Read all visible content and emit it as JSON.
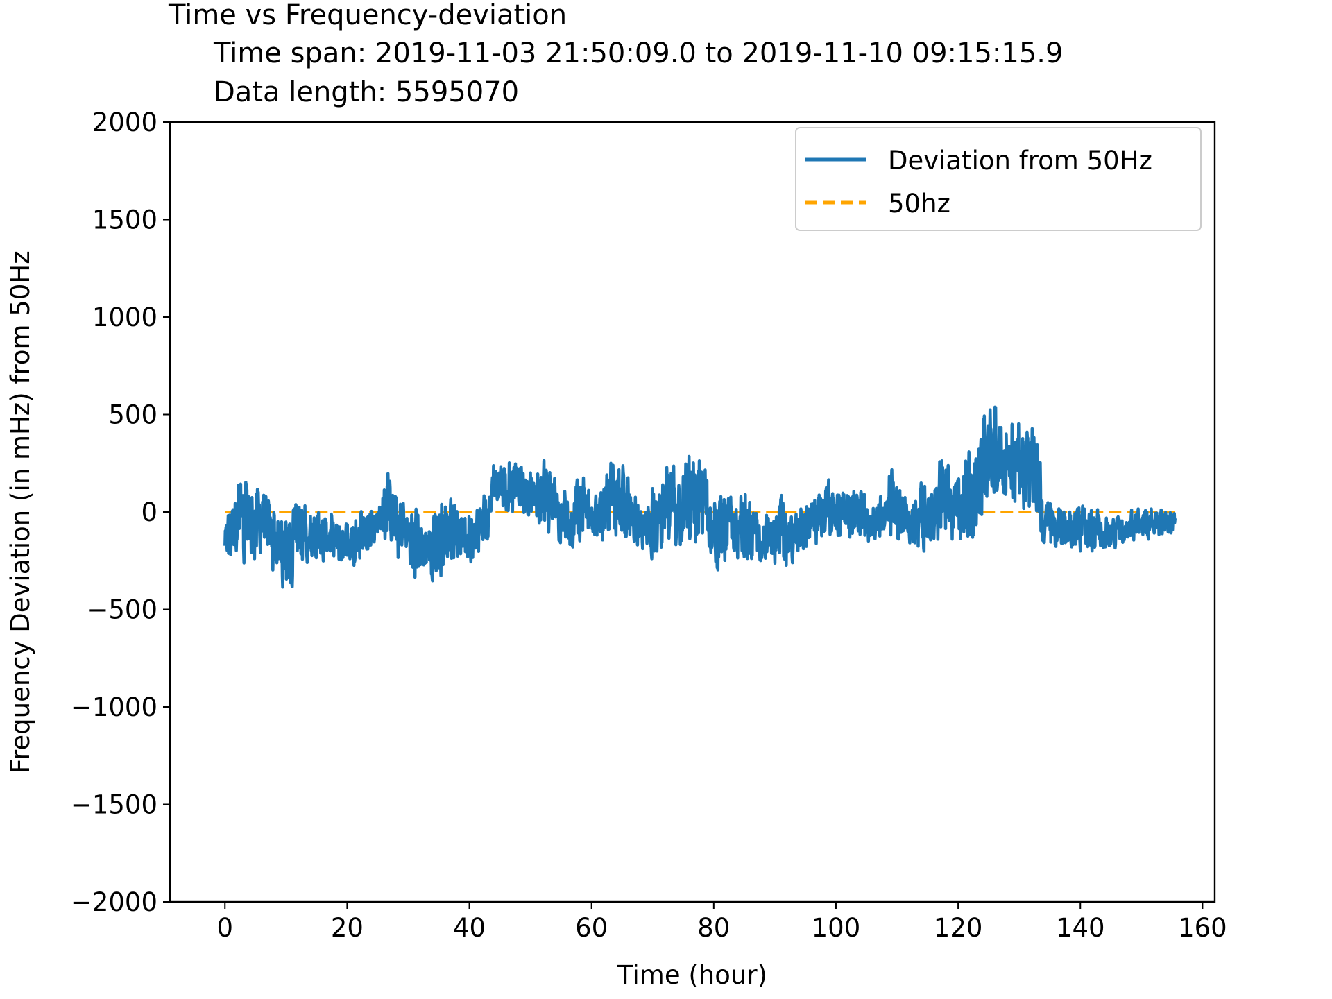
{
  "chart_data": {
    "type": "line",
    "title": "Time vs Frequency-deviation",
    "subtitle_lines": [
      "Time span: 2019-11-03 21:50:09.0 to 2019-11-10 09:15:15.9",
      "Data length: 5595070"
    ],
    "xlabel": "Time (hour)",
    "ylabel": "Frequency Deviation (in mHz) from 50Hz",
    "xlim": [
      -9,
      162
    ],
    "ylim": [
      -2000,
      2000
    ],
    "xticks": [
      0,
      20,
      40,
      60,
      80,
      100,
      120,
      140,
      160
    ],
    "yticks": [
      -2000,
      -1500,
      -1000,
      -500,
      0,
      500,
      1000,
      1500,
      2000
    ],
    "xtick_labels": [
      "0",
      "20",
      "40",
      "60",
      "80",
      "100",
      "120",
      "140",
      "160"
    ],
    "ytick_labels": [
      "−2000",
      "−1500",
      "−1000",
      "−500",
      "0",
      "500",
      "1000",
      "1500",
      "2000"
    ],
    "grid": false,
    "legend_position": "top-right",
    "series": [
      {
        "name": "Deviation from 50Hz",
        "color": "#1f77b4",
        "style": "solid",
        "envelope_x": [
          0,
          0.5,
          1,
          2,
          3,
          4,
          5,
          6,
          7,
          8,
          9,
          10,
          11,
          12,
          13,
          14,
          15,
          16,
          17,
          18,
          19,
          20,
          21,
          22,
          23,
          24,
          25,
          26,
          27,
          28,
          29,
          30,
          31,
          32,
          33,
          34,
          35,
          36,
          37,
          38,
          39,
          40,
          41,
          42,
          43,
          44,
          45,
          46,
          47,
          48,
          49,
          50,
          51,
          52,
          53,
          54,
          55,
          56,
          57,
          58,
          59,
          60,
          61,
          62,
          63,
          64,
          65,
          66,
          67,
          68,
          69,
          70,
          71,
          72,
          73,
          74,
          75,
          76,
          77,
          78,
          79,
          80,
          81,
          82,
          83,
          84,
          85,
          86,
          87,
          88,
          89,
          90,
          91,
          92,
          93,
          94,
          95,
          96,
          97,
          98,
          99,
          100,
          101,
          102,
          103,
          104,
          105,
          106,
          107,
          108,
          109,
          110,
          111,
          112,
          113,
          114,
          115,
          116,
          117,
          118,
          119,
          120,
          121,
          122,
          123,
          124,
          125,
          126,
          127,
          128,
          129,
          130,
          131,
          132,
          133,
          134,
          135,
          136,
          137,
          138,
          139,
          140,
          141,
          142,
          143,
          144,
          145,
          146,
          147,
          148,
          149,
          150,
          151,
          152,
          153,
          154,
          155,
          155.5
        ],
        "envelope_high": [
          -50,
          90,
          120,
          180,
          240,
          200,
          270,
          180,
          120,
          60,
          20,
          30,
          60,
          100,
          140,
          60,
          20,
          40,
          30,
          10,
          20,
          -10,
          -20,
          10,
          20,
          50,
          80,
          150,
          260,
          130,
          70,
          60,
          80,
          40,
          0,
          30,
          120,
          140,
          100,
          40,
          40,
          80,
          100,
          110,
          110,
          290,
          330,
          310,
          330,
          300,
          250,
          220,
          280,
          340,
          240,
          200,
          150,
          130,
          120,
          220,
          200,
          180,
          170,
          160,
          320,
          220,
          280,
          210,
          120,
          90,
          40,
          180,
          160,
          240,
          350,
          320,
          330,
          340,
          320,
          360,
          200,
          110,
          100,
          170,
          120,
          90,
          160,
          80,
          60,
          70,
          40,
          40,
          100,
          30,
          40,
          60,
          120,
          110,
          140,
          160,
          200,
          160,
          190,
          170,
          140,
          180,
          70,
          60,
          100,
          140,
          280,
          150,
          130,
          60,
          110,
          200,
          150,
          160,
          300,
          320,
          200,
          240,
          280,
          370,
          300,
          550,
          580,
          640,
          500,
          520,
          560,
          530,
          480,
          530,
          450,
          100,
          90,
          70,
          60,
          40,
          20,
          60,
          40,
          40,
          30,
          0,
          -20,
          -10,
          -30,
          20,
          30,
          40,
          40,
          30,
          20,
          10,
          20,
          20
        ],
        "envelope_low": [
          -330,
          -300,
          -250,
          -270,
          -300,
          -280,
          -250,
          -240,
          -290,
          -350,
          -430,
          -450,
          -400,
          -350,
          -300,
          -290,
          -280,
          -280,
          -300,
          -300,
          -290,
          -300,
          -310,
          -290,
          -270,
          -200,
          -150,
          -170,
          -240,
          -300,
          -250,
          -280,
          -380,
          -400,
          -360,
          -370,
          -400,
          -330,
          -310,
          -270,
          -270,
          -280,
          -250,
          -220,
          -200,
          -20,
          20,
          -20,
          -20,
          -40,
          -50,
          -30,
          -80,
          -120,
          -150,
          -160,
          -200,
          -220,
          -200,
          -190,
          -150,
          -130,
          -160,
          -200,
          -170,
          -150,
          -190,
          -200,
          -210,
          -190,
          -220,
          -260,
          -240,
          -250,
          -220,
          -230,
          -200,
          -230,
          -260,
          -220,
          -260,
          -400,
          -330,
          -300,
          -280,
          -290,
          -320,
          -300,
          -260,
          -310,
          -320,
          -300,
          -320,
          -310,
          -270,
          -240,
          -210,
          -220,
          -200,
          -180,
          -170,
          -150,
          -130,
          -160,
          -140,
          -190,
          -190,
          -170,
          -140,
          -170,
          -230,
          -200,
          -160,
          -170,
          -230,
          -230,
          -200,
          -200,
          -170,
          -140,
          -200,
          -190,
          -230,
          -250,
          -180,
          -120,
          -80,
          -20,
          40,
          30,
          20,
          0,
          -20,
          -60,
          -110,
          -250,
          -240,
          -210,
          -210,
          -220,
          -240,
          -230,
          -230,
          -230,
          -210,
          -240,
          -230,
          -210,
          -190,
          -160,
          -150,
          -160,
          -150,
          -140,
          -150,
          -150,
          -120,
          -110
        ]
      },
      {
        "name": "50hz",
        "color": "#ffa500",
        "style": "dashed",
        "x": [
          0,
          155.5
        ],
        "values": [
          0,
          0
        ]
      }
    ]
  }
}
